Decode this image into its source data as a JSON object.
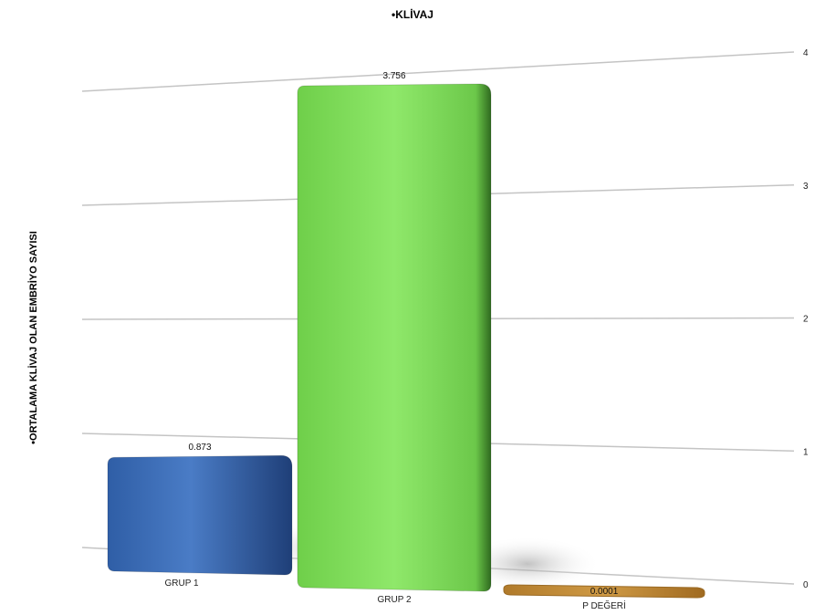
{
  "chart_data": {
    "type": "bar",
    "title": "•KLİVAJ",
    "ylabel": "•ORTALAMA KLİVAJ OLAN EMBRİYO SAYISI",
    "xlabel": "",
    "categories": [
      "GRUP 1",
      "GRUP 2",
      "P DEĞERİ"
    ],
    "values": [
      0.873,
      3.756,
      0.0001
    ],
    "data_labels": [
      "0.873",
      "3.756",
      "0.0001"
    ],
    "colors": [
      "#3d6fb8",
      "#7fd95a",
      "#c8913a"
    ],
    "ylim": [
      0,
      4
    ],
    "yticks": [
      "0",
      "1",
      "2",
      "3",
      "4"
    ],
    "grid": true,
    "legend": "none",
    "style": "3d-perspective"
  }
}
